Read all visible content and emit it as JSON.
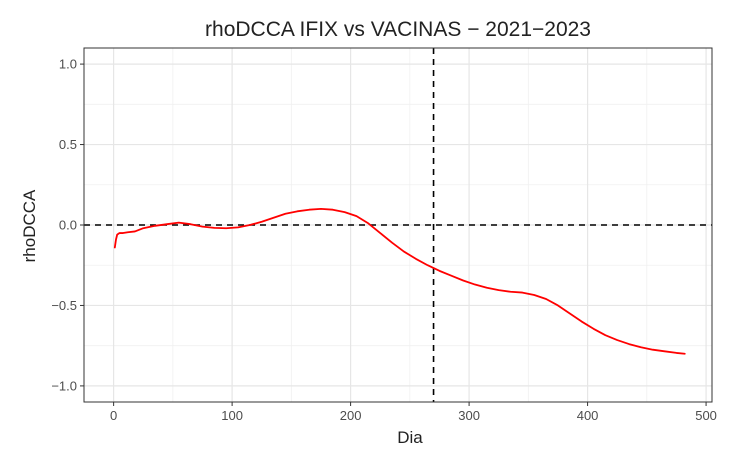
{
  "chart_data": {
    "type": "line",
    "title": "rhoDCCA IFIX vs VACINAS − 2021−2023",
    "xlabel": "Dia",
    "ylabel": "rhoDCCA",
    "xlim": [
      -25,
      505
    ],
    "ylim": [
      -1.1,
      1.1
    ],
    "x_ticks": [
      0,
      100,
      200,
      300,
      400,
      500
    ],
    "y_ticks": [
      -1.0,
      -0.5,
      0.0,
      0.5,
      1.0
    ],
    "x_tick_labels": [
      "0",
      "100",
      "200",
      "300",
      "400",
      "500"
    ],
    "y_tick_labels": [
      "−1.0",
      "−0.5",
      "0.0",
      "0.5",
      "1.0"
    ],
    "grid": true,
    "reference_lines": [
      {
        "orientation": "horizontal",
        "value": 0,
        "style": "dashed"
      },
      {
        "orientation": "vertical",
        "value": 270,
        "style": "dashed"
      }
    ],
    "series": [
      {
        "color": "#ff0000",
        "x": [
          1,
          2,
          3,
          5,
          8,
          12,
          18,
          25,
          35,
          45,
          55,
          65,
          75,
          85,
          95,
          105,
          115,
          125,
          135,
          145,
          155,
          165,
          175,
          185,
          195,
          205,
          215,
          225,
          235,
          245,
          255,
          265,
          275,
          285,
          295,
          305,
          315,
          325,
          335,
          345,
          355,
          365,
          375,
          385,
          395,
          405,
          415,
          425,
          435,
          445,
          455,
          465,
          475,
          482
        ],
        "y": [
          -0.14,
          -0.09,
          -0.06,
          -0.05,
          -0.05,
          -0.045,
          -0.04,
          -0.02,
          -0.005,
          0.005,
          0.015,
          0.005,
          -0.01,
          -0.018,
          -0.02,
          -0.015,
          0.0,
          0.02,
          0.045,
          0.07,
          0.085,
          0.095,
          0.1,
          0.095,
          0.08,
          0.055,
          0.01,
          -0.05,
          -0.11,
          -0.165,
          -0.21,
          -0.25,
          -0.285,
          -0.315,
          -0.345,
          -0.37,
          -0.39,
          -0.405,
          -0.415,
          -0.42,
          -0.435,
          -0.46,
          -0.5,
          -0.55,
          -0.6,
          -0.645,
          -0.685,
          -0.715,
          -0.74,
          -0.76,
          -0.775,
          -0.785,
          -0.795,
          -0.8
        ]
      }
    ]
  }
}
